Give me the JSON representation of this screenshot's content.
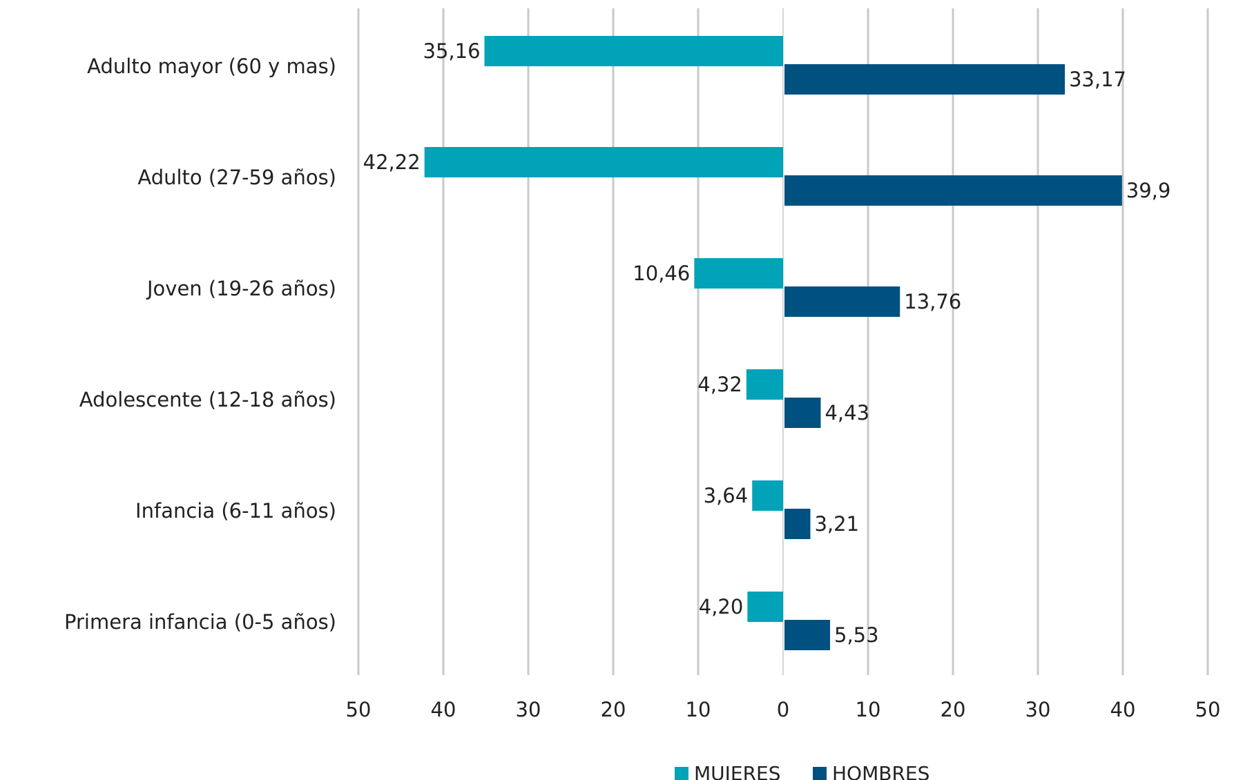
{
  "chart_data": {
    "type": "bar",
    "orientation": "horizontal-butterfly",
    "categories": [
      "Adulto mayor (60 y mas)",
      "Adulto (27-59 años)",
      "Joven (19-26 años)",
      "Adolescente (12-18 años)",
      "Infancia (6-11 años)",
      "Primera infancia (0-5 años)"
    ],
    "series": [
      {
        "name": "MUJERES",
        "color": "#00a3b8",
        "side": "left",
        "values": [
          35.16,
          42.22,
          10.46,
          4.32,
          3.64,
          4.2
        ],
        "labels": [
          "35,16",
          "42,22",
          "10,46",
          "4,32",
          "3,64",
          "4,20"
        ]
      },
      {
        "name": "HOMBRES",
        "color": "#005080",
        "side": "right",
        "values": [
          33.17,
          39.9,
          13.76,
          4.43,
          3.21,
          5.53
        ],
        "labels": [
          "33,17",
          "39,9",
          "13,76",
          "4,43",
          "3,21",
          "5,53"
        ]
      }
    ],
    "xlim": [
      -50,
      50
    ],
    "ticks": [
      -50,
      -40,
      -30,
      -20,
      -10,
      0,
      10,
      20,
      30,
      40,
      50
    ],
    "tick_labels": [
      "50",
      "40",
      "30",
      "20",
      "10",
      "0",
      "10",
      "20",
      "30",
      "40",
      "50"
    ],
    "grid": true,
    "legend_position": "bottom",
    "title": "",
    "xlabel": "",
    "ylabel": ""
  }
}
